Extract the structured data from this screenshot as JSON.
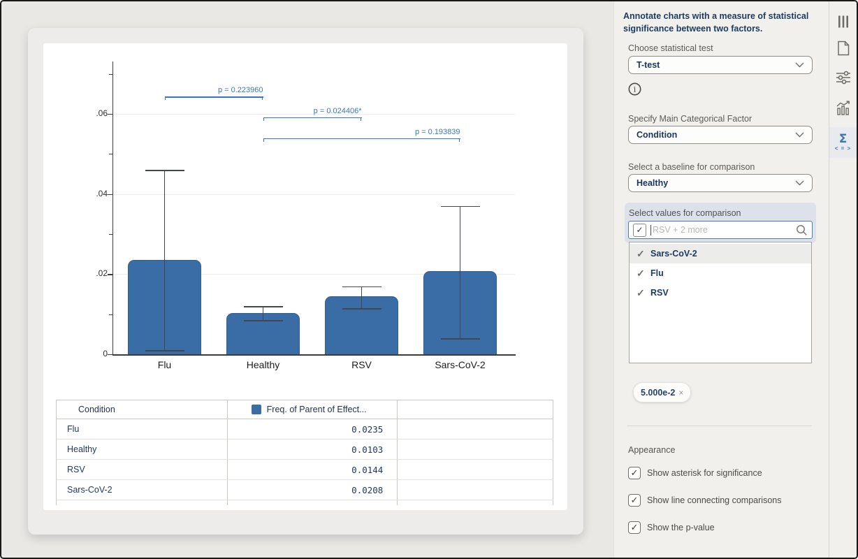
{
  "chart_data": {
    "type": "bar",
    "title": "",
    "xlabel": "",
    "ylabel": "",
    "categories": [
      "Flu",
      "Healthy",
      "RSV",
      "Sars-CoV-2"
    ],
    "values": [
      0.0235,
      0.0103,
      0.0144,
      0.0208
    ],
    "error_low": [
      0.001,
      0.0085,
      0.0115,
      0.004
    ],
    "error_high": [
      0.046,
      0.012,
      0.017,
      0.037
    ],
    "ylim": [
      0,
      0.073
    ],
    "grid": true,
    "yticks": [
      {
        "value": 0,
        "label": "0"
      },
      {
        "value": 0.02,
        "label": ".02"
      },
      {
        "value": 0.04,
        "label": ".04"
      },
      {
        "value": 0.06,
        "label": ".06"
      }
    ],
    "minor_ticks": [
      0.01,
      0.03,
      0.05,
      0.07
    ],
    "comparisons": [
      {
        "from": "Flu",
        "to": "Healthy",
        "label": "p = 0.223960",
        "y": 0.0643
      },
      {
        "from": "Healthy",
        "to": "RSV",
        "label": "p = 0.024406*",
        "y": 0.0591
      },
      {
        "from": "Healthy",
        "to": "Sars-CoV-2",
        "label": "p = 0.193839",
        "y": 0.0539
      }
    ],
    "colors": {
      "bar": "#3a6ca6",
      "bar_border": "#2f5e97",
      "error": "#42464e",
      "annotation": "#3b77b8",
      "axis": "#3c3c3c",
      "grid": "#ededea"
    }
  },
  "table": {
    "columns": [
      {
        "label": "Condition"
      },
      {
        "label": "Freq. of Parent of Effect...",
        "swatch": "#3a6ca6"
      },
      {
        "label": ""
      }
    ],
    "rows": [
      [
        "Flu",
        "0.0235"
      ],
      [
        "Healthy",
        "0.0103"
      ],
      [
        "RSV",
        "0.0144"
      ],
      [
        "Sars-CoV-2",
        "0.0208"
      ]
    ]
  },
  "panel": {
    "title": "Annotate charts with a measure of statistical significance between two factors.",
    "statistical_test": {
      "label": "Choose statistical test",
      "value": "T-test"
    },
    "main_factor": {
      "label": "Specify Main Categorical Factor",
      "value": "Condition"
    },
    "baseline": {
      "label": "Select a baseline for comparison",
      "value": "Healthy"
    },
    "comparison": {
      "label": "Select values for comparison",
      "placeholder": "RSV + 2 more",
      "options": [
        {
          "label": "Sars-CoV-2",
          "checked": true,
          "highlighted": true
        },
        {
          "label": "Flu",
          "checked": true,
          "highlighted": false
        },
        {
          "label": "RSV",
          "checked": true,
          "highlighted": false
        }
      ]
    },
    "alpha_chip": {
      "value": "5.000e-2",
      "remove": "×"
    },
    "appearance": {
      "label": "Appearance",
      "checkboxes": [
        {
          "label": "Show asterisk for significance",
          "checked": true
        },
        {
          "label": "Show line connecting comparisons",
          "checked": true
        },
        {
          "label": "Show the p-value",
          "checked": true
        }
      ]
    }
  },
  "toolbar": {
    "icons": [
      {
        "name": "columns",
        "selected": false
      },
      {
        "name": "document",
        "selected": false
      },
      {
        "name": "settings-sliders",
        "selected": false
      },
      {
        "name": "chart",
        "selected": false
      },
      {
        "name": "sigma-compare",
        "selected": true
      }
    ]
  }
}
